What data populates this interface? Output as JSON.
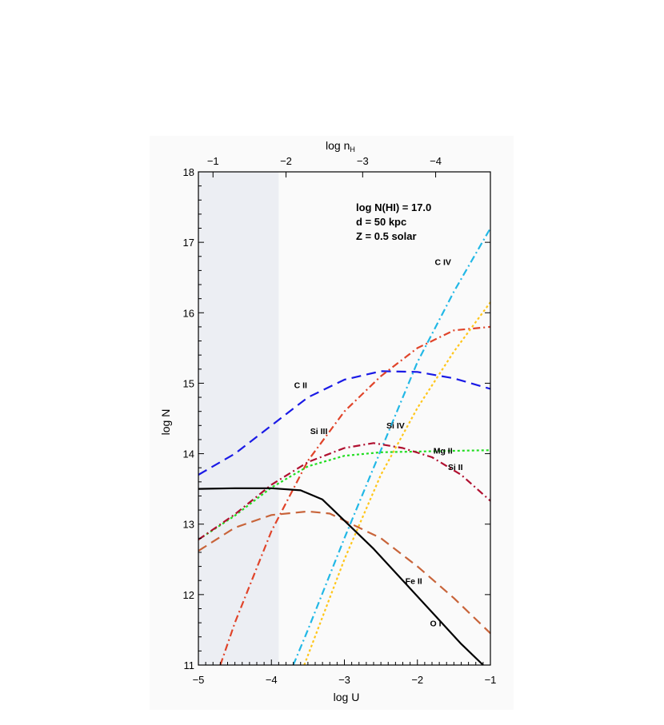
{
  "chart_data": {
    "type": "line",
    "xlabel": "log U",
    "ylabel": "log N",
    "top_axis_label": "log n",
    "top_axis_label_sub": "H",
    "xlim": [
      -5,
      -1
    ],
    "ylim": [
      11,
      18
    ],
    "x_ticks": [
      -5,
      -4,
      -3,
      -2,
      -1
    ],
    "y_ticks": [
      11,
      12,
      13,
      14,
      15,
      16,
      17,
      18
    ],
    "top_ticks": [
      {
        "label": "−1",
        "at_logU": -4.8
      },
      {
        "label": "−2",
        "at_logU": -3.8
      },
      {
        "label": "−3",
        "at_logU": -2.75
      },
      {
        "label": "−4",
        "at_logU": -1.75
      }
    ],
    "shaded_region": [
      -5,
      -3.9
    ],
    "annotations": [
      "log N(HI) = 17.0",
      "d = 50 kpc",
      "Z = 0.5 solar"
    ],
    "series": [
      {
        "name": "C II",
        "color": "#1a1ae6",
        "dash": "long",
        "x": [
          -5,
          -4.5,
          -4,
          -3.5,
          -3,
          -2.5,
          -2,
          -1.5,
          -1
        ],
        "y": [
          13.7,
          14.0,
          14.4,
          14.8,
          15.05,
          15.17,
          15.16,
          15.07,
          14.92
        ]
      },
      {
        "name": "C IV",
        "color": "#22b8e6",
        "dash": "dashdot",
        "x": [
          -3.7,
          -3.5,
          -3,
          -2.5,
          -2,
          -1.5,
          -1
        ],
        "y": [
          11.0,
          11.5,
          12.8,
          14.05,
          15.3,
          16.3,
          17.2
        ]
      },
      {
        "name": "Si III",
        "color": "#e0442a",
        "dash": "dashdot",
        "x": [
          -4.7,
          -4.5,
          -4,
          -3.5,
          -3,
          -2.5,
          -2,
          -1.5,
          -1
        ],
        "y": [
          11.0,
          11.6,
          12.9,
          13.9,
          14.6,
          15.1,
          15.5,
          15.75,
          15.8
        ]
      },
      {
        "name": "Si IV",
        "color": "#ffc61a",
        "dash": "dotted",
        "x": [
          -3.55,
          -3,
          -2.5,
          -2,
          -1.5,
          -1
        ],
        "y": [
          11.0,
          12.5,
          13.7,
          14.65,
          15.45,
          16.15
        ]
      },
      {
        "name": "Mg II",
        "color": "#22dd22",
        "dash": "dotted",
        "x": [
          -5,
          -4.5,
          -4,
          -3.5,
          -3,
          -2.5,
          -2,
          -1.5,
          -1
        ],
        "y": [
          12.78,
          13.12,
          13.52,
          13.82,
          13.97,
          14.02,
          14.03,
          14.04,
          14.05
        ]
      },
      {
        "name": "Si II",
        "color": "#b01030",
        "dash": "dashdot",
        "x": [
          -5,
          -4.5,
          -4,
          -3.5,
          -3,
          -2.6,
          -2.2,
          -1.8,
          -1.4,
          -1
        ],
        "y": [
          12.78,
          13.14,
          13.56,
          13.88,
          14.08,
          14.15,
          14.08,
          13.95,
          13.7,
          13.33
        ]
      },
      {
        "name": "Fe II",
        "color": "#c8643a",
        "dash": "long",
        "x": [
          -5,
          -4.5,
          -4,
          -3.5,
          -3.2,
          -3,
          -2.5,
          -2,
          -1.5,
          -1
        ],
        "y": [
          12.62,
          12.95,
          13.13,
          13.18,
          13.15,
          13.05,
          12.8,
          12.4,
          11.95,
          11.45
        ]
      },
      {
        "name": "O I",
        "color": "#000000",
        "dash": "solid",
        "x": [
          -5,
          -4.5,
          -4,
          -3.6,
          -3.3,
          -3.0,
          -2.6,
          -2.2,
          -1.8,
          -1.4,
          -1.1
        ],
        "y": [
          13.5,
          13.51,
          13.51,
          13.48,
          13.35,
          13.05,
          12.65,
          12.2,
          11.75,
          11.3,
          11.0
        ]
      }
    ],
    "series_labels": [
      {
        "name": "C II",
        "x": -3.6,
        "y": 14.93
      },
      {
        "name": "C IV",
        "x": -1.65,
        "y": 16.68
      },
      {
        "name": "Si III",
        "x": -3.35,
        "y": 14.28
      },
      {
        "name": "Si IV",
        "x": -2.3,
        "y": 14.36
      },
      {
        "name": "Mg II",
        "x": -1.65,
        "y": 14.0
      },
      {
        "name": "Si II",
        "x": -1.48,
        "y": 13.77
      },
      {
        "name": "Fe II",
        "x": -2.05,
        "y": 12.15
      },
      {
        "name": "O I",
        "x": -1.75,
        "y": 11.55
      }
    ]
  }
}
